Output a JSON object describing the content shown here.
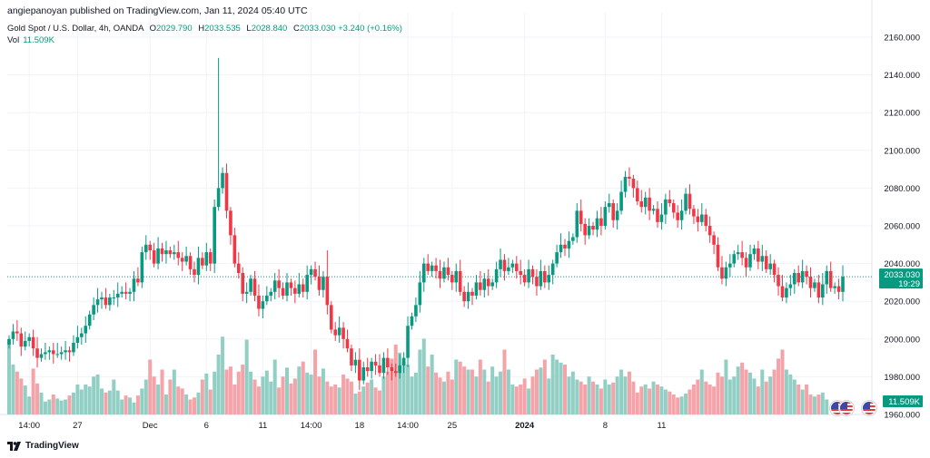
{
  "header": {
    "publisher": "angiepanoyan published on TradingView.com, Jan 11, 2024 05:40 UTC"
  },
  "legend": {
    "symbol": "Gold Spot / U.S. Dollar, 4h, OANDA",
    "open_label": "O",
    "open": "2029.790",
    "high_label": "H",
    "high": "2033.535",
    "low_label": "L",
    "low": "2028.840",
    "close_label": "C",
    "close": "2033.030",
    "change": "+3.240 (+0.16%)",
    "vol_label": "Vol",
    "vol": "11.509K"
  },
  "price_tag": {
    "price": "2033.030",
    "countdown": "19:29"
  },
  "volume_tag": "11.509K",
  "footer": {
    "brand": "TradingView"
  },
  "colors": {
    "up": "#089981",
    "down": "#f23645",
    "vol_up": "#91cfc4",
    "vol_down": "#f5a3a8",
    "grid": "#f0f3fa",
    "axis_text": "#131722"
  },
  "chart_data": {
    "type": "candlestick",
    "symbol": "XAUUSD",
    "interval": "4h",
    "ylim": [
      1955,
      2165
    ],
    "y_ticks": [
      "2160.000",
      "2140.000",
      "2120.000",
      "2100.000",
      "2080.000",
      "2060.000",
      "2040.000",
      "2020.000",
      "2000.000",
      "1980.000",
      "1960.000"
    ],
    "y_tick_values": [
      2160,
      2140,
      2120,
      2100,
      2080,
      2060,
      2040,
      2020,
      2000,
      1980,
      1960
    ],
    "x_ticks": [
      {
        "label": "14:00",
        "index": 5,
        "bold": false
      },
      {
        "label": "27",
        "index": 17,
        "bold": false
      },
      {
        "label": "Dec",
        "index": 35,
        "bold": false
      },
      {
        "label": "6",
        "index": 49,
        "bold": false
      },
      {
        "label": "11",
        "index": 63,
        "bold": false
      },
      {
        "label": "14:00",
        "index": 75,
        "bold": false
      },
      {
        "label": "18",
        "index": 87,
        "bold": false
      },
      {
        "label": "14:00",
        "index": 99,
        "bold": false
      },
      {
        "label": "25",
        "index": 110,
        "bold": false
      },
      {
        "label": "2024",
        "index": 128,
        "bold": true
      },
      {
        "label": "8",
        "index": 148,
        "bold": false
      },
      {
        "label": "11",
        "index": 162,
        "bold": false
      }
    ],
    "closes": [
      2000,
      2004,
      2003,
      1996,
      1999,
      2001,
      1995,
      1990,
      1992,
      1993,
      1994,
      1992,
      1992,
      1993,
      1994,
      1993,
      1998,
      2001,
      2003,
      2007,
      2013,
      2018,
      2021,
      2022,
      2018,
      2022,
      2022,
      2024,
      2025,
      2024,
      2025,
      2032,
      2030,
      2046,
      2050,
      2047,
      2040,
      2048,
      2045,
      2047,
      2045,
      2046,
      2043,
      2041,
      2044,
      2037,
      2034,
      2043,
      2039,
      2046,
      2040,
      2070,
      2080,
      2088,
      2068,
      2055,
      2040,
      2035,
      2024,
      2025,
      2032,
      2023,
      2016,
      2020,
      2023,
      2025,
      2031,
      2027,
      2023,
      2030,
      2027,
      2024,
      2029,
      2025,
      2034,
      2037,
      2033,
      2026,
      2033,
      2018,
      2005,
      2002,
      2006,
      2000,
      1995,
      1986,
      1989,
      1978,
      1985,
      1983,
      1988,
      1986,
      1982,
      1990,
      1985,
      1983,
      1982,
      1986,
      1990,
      2007,
      2012,
      2018,
      2030,
      2040,
      2036,
      2039,
      2036,
      2032,
      2038,
      2034,
      2030,
      2036,
      2025,
      2020,
      2025,
      2023,
      2030,
      2026,
      2032,
      2028,
      2030,
      2037,
      2042,
      2036,
      2038,
      2040,
      2036,
      2034,
      2030,
      2037,
      2033,
      2028,
      2036,
      2030,
      2034,
      2040,
      2046,
      2050,
      2048,
      2052,
      2054,
      2068,
      2061,
      2055,
      2060,
      2058,
      2064,
      2060,
      2070,
      2072,
      2063,
      2068,
      2078,
      2086,
      2085,
      2080,
      2073,
      2070,
      2075,
      2068,
      2069,
      2062,
      2066,
      2074,
      2072,
      2067,
      2063,
      2068,
      2077,
      2069,
      2065,
      2062,
      2066,
      2060,
      2055,
      2050,
      2038,
      2032,
      2038,
      2040,
      2045,
      2046,
      2043,
      2038,
      2045,
      2048,
      2041,
      2044,
      2037,
      2040,
      2034,
      2028,
      2022,
      2027,
      2029,
      2035,
      2030,
      2036,
      2033,
      2027,
      2030,
      2022,
      2029,
      2036,
      2027,
      2028,
      2025,
      2033
    ],
    "volumes": [
      0.75,
      0.5,
      0.43,
      0.36,
      0.29,
      0.18,
      0.46,
      0.31,
      0.22,
      0.13,
      0.15,
      0.2,
      0.16,
      0.14,
      0.15,
      0.19,
      0.22,
      0.3,
      0.25,
      0.3,
      0.28,
      0.38,
      0.4,
      0.26,
      0.22,
      0.24,
      0.35,
      0.24,
      0.15,
      0.19,
      0.17,
      0.12,
      0.19,
      0.26,
      0.35,
      0.55,
      0.38,
      0.3,
      0.45,
      0.2,
      0.35,
      0.45,
      0.28,
      0.26,
      0.2,
      0.15,
      0.17,
      0.22,
      0.35,
      0.41,
      0.25,
      0.43,
      0.6,
      0.78,
      0.45,
      0.48,
      0.3,
      0.43,
      0.5,
      0.75,
      0.43,
      0.35,
      0.28,
      0.38,
      0.44,
      0.33,
      0.55,
      0.27,
      0.38,
      0.47,
      0.31,
      0.36,
      0.48,
      0.53,
      0.42,
      0.4,
      0.65,
      0.38,
      0.46,
      0.33,
      0.28,
      0.3,
      0.27,
      0.4,
      0.36,
      0.33,
      0.21,
      0.23,
      0.28,
      0.32,
      0.35,
      0.27,
      0.24,
      0.38,
      0.43,
      0.56,
      0.7,
      0.62,
      0.53,
      0.5,
      0.38,
      0.42,
      0.65,
      0.76,
      0.48,
      0.6,
      0.42,
      0.37,
      0.33,
      0.43,
      0.35,
      0.55,
      0.53,
      0.48,
      0.45,
      0.45,
      0.38,
      0.55,
      0.45,
      0.33,
      0.48,
      0.38,
      0.43,
      0.65,
      0.45,
      0.3,
      0.28,
      0.3,
      0.36,
      0.26,
      0.38,
      0.45,
      0.47,
      0.55,
      0.36,
      0.6,
      0.55,
      0.52,
      0.5,
      0.38,
      0.43,
      0.35,
      0.33,
      0.3,
      0.38,
      0.33,
      0.3,
      0.26,
      0.35,
      0.3,
      0.32,
      0.38,
      0.45,
      0.38,
      0.43,
      0.33,
      0.22,
      0.28,
      0.3,
      0.26,
      0.33,
      0.3,
      0.28,
      0.25,
      0.23,
      0.2,
      0.17,
      0.18,
      0.21,
      0.25,
      0.3,
      0.35,
      0.45,
      0.33,
      0.3,
      0.28,
      0.42,
      0.38,
      0.55,
      0.35,
      0.38,
      0.48,
      0.52,
      0.45,
      0.42,
      0.36,
      0.28,
      0.45,
      0.33,
      0.38,
      0.45,
      0.56,
      0.65,
      0.45,
      0.4,
      0.35,
      0.3,
      0.25,
      0.3,
      0.2,
      0.18,
      0.2,
      0.22,
      0.15
    ],
    "spikes": [
      {
        "index": 52,
        "high": 2149
      },
      {
        "index": 79,
        "high": 2047
      },
      {
        "index": 144,
        "high": 2064
      }
    ],
    "last_price": 2033.03,
    "volume_axis_max_fraction": 0.22
  }
}
